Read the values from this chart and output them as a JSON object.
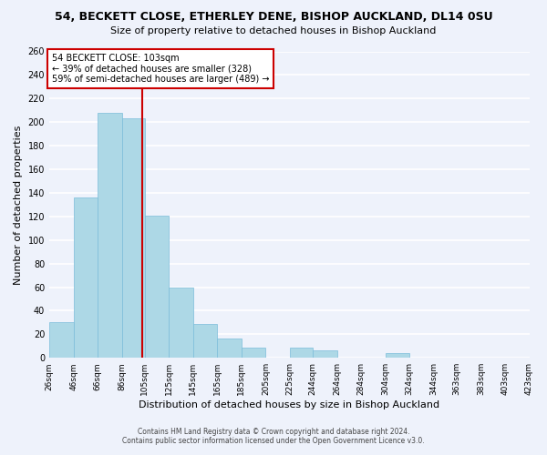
{
  "title_line1": "54, BECKETT CLOSE, ETHERLEY DENE, BISHOP AUCKLAND, DL14 0SU",
  "title_line2": "Size of property relative to detached houses in Bishop Auckland",
  "xlabel": "Distribution of detached houses by size in Bishop Auckland",
  "ylabel": "Number of detached properties",
  "bar_color": "#add8e6",
  "bar_edge_color": "#7bbcda",
  "bins": [
    26,
    46,
    66,
    86,
    105,
    125,
    145,
    165,
    185,
    205,
    225,
    244,
    264,
    284,
    304,
    324,
    344,
    363,
    383,
    403,
    423
  ],
  "bin_labels": [
    "26sqm",
    "46sqm",
    "66sqm",
    "86sqm",
    "105sqm",
    "125sqm",
    "145sqm",
    "165sqm",
    "185sqm",
    "205sqm",
    "225sqm",
    "244sqm",
    "264sqm",
    "284sqm",
    "304sqm",
    "324sqm",
    "344sqm",
    "363sqm",
    "383sqm",
    "403sqm",
    "423sqm"
  ],
  "counts": [
    30,
    136,
    208,
    203,
    121,
    60,
    29,
    16,
    9,
    0,
    9,
    6,
    0,
    0,
    4,
    0,
    0,
    0,
    0,
    0
  ],
  "ylim": [
    0,
    260
  ],
  "yticks": [
    0,
    20,
    40,
    60,
    80,
    100,
    120,
    140,
    160,
    180,
    200,
    220,
    240,
    260
  ],
  "vline_x": 103,
  "vline_color": "#cc0000",
  "annotation_text": "54 BECKETT CLOSE: 103sqm\n← 39% of detached houses are smaller (328)\n59% of semi-detached houses are larger (489) →",
  "annotation_box_color": "#ffffff",
  "annotation_box_edge": "#cc0000",
  "footer_line1": "Contains HM Land Registry data © Crown copyright and database right 2024.",
  "footer_line2": "Contains public sector information licensed under the Open Government Licence v3.0.",
  "background_color": "#eef2fb",
  "grid_color": "#ffffff"
}
